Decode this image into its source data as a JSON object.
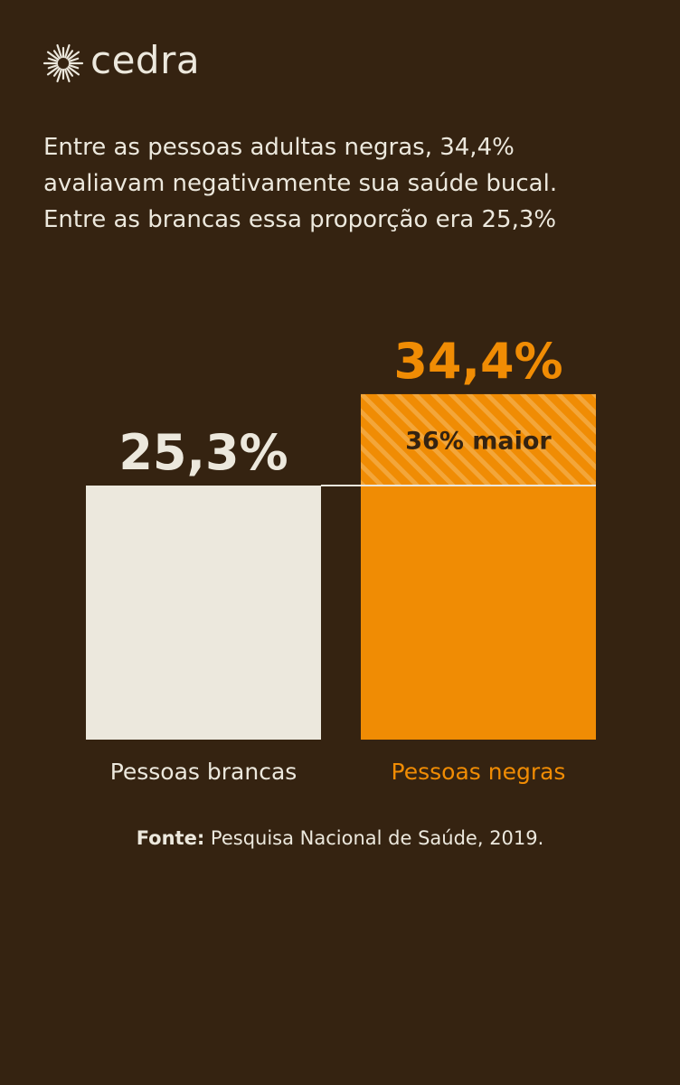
{
  "brand": {
    "name": "cedra",
    "logo_icon": "sun-burst-icon"
  },
  "headline": {
    "lines": [
      "Entre as pessoas adultas negras, 34,4%",
      "avaliavam negativamente sua saúde bucal.",
      "Entre as brancas essa proporção era 25,3%"
    ]
  },
  "colors": {
    "background": "#352311",
    "cream": "#ECE8DD",
    "orange": "#F08C04",
    "dark_text": "#352311"
  },
  "chart_data": {
    "type": "bar",
    "categories": [
      "Pessoas brancas",
      "Pessoas negras"
    ],
    "values": [
      25.3,
      34.4
    ],
    "value_labels": [
      "25,3%",
      "34,4%"
    ],
    "bar_colors": [
      "#ECE8DD",
      "#F08C04"
    ],
    "label_colors": [
      "#ECE8DD",
      "#F08C04"
    ],
    "difference_label": "36% maior",
    "unit": "%",
    "grid": false,
    "legend": "none"
  },
  "source": {
    "label": "Fonte:",
    "text": " Pesquisa Nacional de Saúde, 2019."
  }
}
